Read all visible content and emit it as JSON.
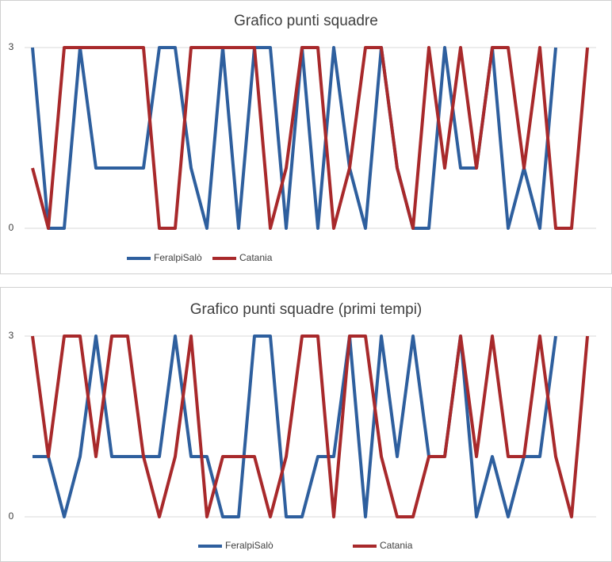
{
  "chart_data": [
    {
      "type": "line",
      "title": "Grafico punti squadre",
      "categories": [
        null,
        null,
        null,
        null,
        null,
        null,
        null,
        null,
        null,
        null,
        null,
        null,
        null,
        null,
        null,
        null,
        null,
        null,
        null,
        null,
        null,
        null,
        null,
        null,
        null,
        null,
        null,
        null,
        null,
        null,
        null,
        null,
        null,
        null,
        null,
        null
      ],
      "series": [
        {
          "name": "FeralpiSalò",
          "color": "#2e5f9e",
          "values": [
            3,
            0,
            0,
            3,
            1,
            1,
            1,
            1,
            3,
            3,
            1,
            0,
            3,
            0,
            3,
            3,
            0,
            3,
            0,
            3,
            1,
            0,
            3,
            1,
            0,
            0,
            3,
            1,
            1,
            3,
            0,
            1,
            0,
            3,
            null,
            null
          ]
        },
        {
          "name": "Catania",
          "color": "#a8292b",
          "values": [
            1,
            0,
            3,
            3,
            3,
            3,
            3,
            3,
            0,
            0,
            3,
            3,
            3,
            3,
            3,
            0,
            1,
            3,
            3,
            0,
            1,
            3,
            3,
            1,
            0,
            3,
            1,
            3,
            1,
            3,
            3,
            1,
            3,
            0,
            0,
            3
          ]
        }
      ],
      "ylim": [
        0,
        3
      ],
      "yticks": [
        0,
        3
      ],
      "grid": true,
      "legend": "bottom"
    },
    {
      "type": "line",
      "title": "Grafico punti squadre (primi tempi)",
      "categories": [
        null,
        null,
        null,
        null,
        null,
        null,
        null,
        null,
        null,
        null,
        null,
        null,
        null,
        null,
        null,
        null,
        null,
        null,
        null,
        null,
        null,
        null,
        null,
        null,
        null,
        null,
        null,
        null,
        null,
        null,
        null,
        null,
        null,
        null,
        null,
        null
      ],
      "series": [
        {
          "name": "FeralpiSalò",
          "color": "#2e5f9e",
          "values": [
            1,
            1,
            0,
            1,
            3,
            1,
            1,
            1,
            1,
            3,
            1,
            1,
            0,
            0,
            3,
            3,
            0,
            0,
            1,
            1,
            3,
            0,
            3,
            1,
            3,
            1,
            1,
            3,
            0,
            1,
            0,
            1,
            1,
            3,
            null,
            null
          ]
        },
        {
          "name": "Catania",
          "color": "#a8292b",
          "values": [
            3,
            1,
            3,
            3,
            1,
            3,
            3,
            1,
            0,
            1,
            3,
            0,
            1,
            1,
            1,
            0,
            1,
            3,
            3,
            0,
            3,
            3,
            1,
            0,
            0,
            1,
            1,
            3,
            1,
            3,
            1,
            1,
            3,
            1,
            0,
            3
          ]
        }
      ],
      "ylim": [
        0,
        3
      ],
      "yticks": [
        0,
        3
      ],
      "grid": true,
      "legend": "bottom"
    }
  ]
}
